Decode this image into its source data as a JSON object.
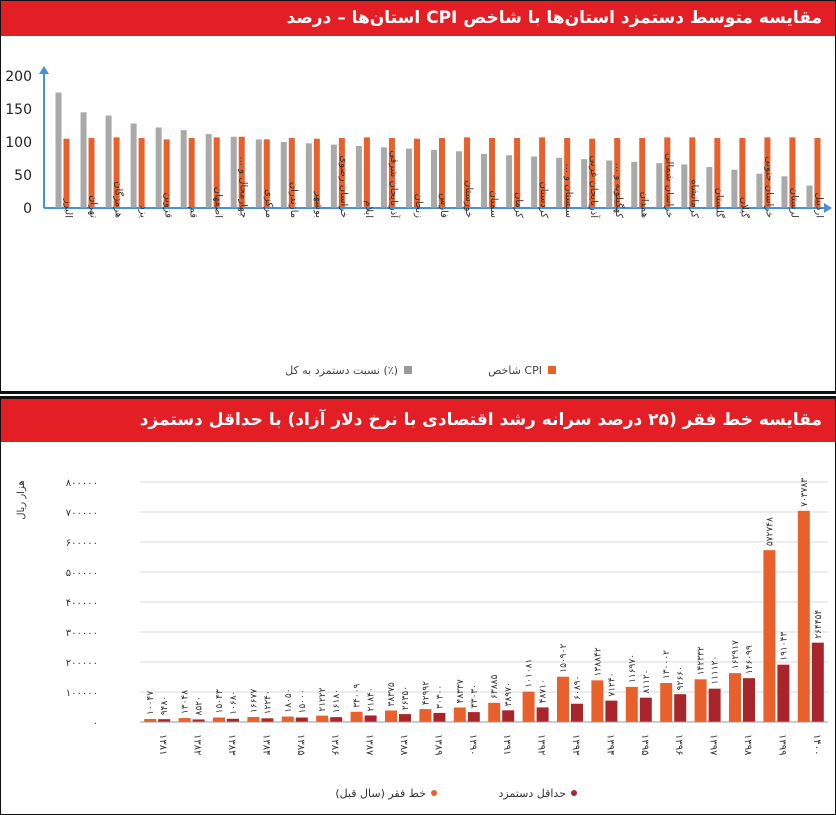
{
  "chart_data": [
    {
      "type": "bar",
      "title": "مقایسه متوسط دستمزد استان‌ها با شاخص CPI استان‌ها – درصد",
      "categories": [
        "البرز",
        "تهران",
        "هرمزگان",
        "یزد",
        "قزوین",
        "قم",
        "اصفهان",
        "چهارمحال و ...",
        "مرکزی",
        "مازندران",
        "بوشهر",
        "خراسان رضوی",
        "ایلام",
        "آذربایجان شرقی",
        "زنجان",
        "فارس",
        "خوزستان",
        "سمنان",
        "کرمان",
        "کردستان",
        "سیستان و ...",
        "آذربایجان غربی",
        "کهگیلویه و ...",
        "همدان",
        "خراسان شمالی",
        "کرمانشاه",
        "گلستان",
        "گیلان",
        "خراسان جنوبی",
        "لرستان",
        "اردبیل"
      ],
      "series": [
        {
          "name": "نسبت دستمزد به کل (٪)",
          "color": "#9a9a9a",
          "values": [
            175,
            145,
            140,
            128,
            122,
            118,
            112,
            108,
            104,
            100,
            98,
            96,
            94,
            92,
            90,
            88,
            86,
            82,
            80,
            78,
            76,
            74,
            72,
            70,
            68,
            66,
            62,
            58,
            52,
            48,
            34
          ]
        },
        {
          "name": "شاخص CPI",
          "color": "#e8602c",
          "values": [
            105,
            106,
            107,
            106,
            104,
            106,
            107,
            108,
            104,
            106,
            105,
            106,
            107,
            106,
            105,
            106,
            107,
            106,
            106,
            107,
            106,
            105,
            106,
            106,
            107,
            107,
            106,
            106,
            107,
            107,
            106
          ]
        }
      ],
      "ylim": [
        0,
        200
      ],
      "yticks": [
        0,
        50,
        100,
        150,
        200
      ],
      "legend_position": "bottom"
    },
    {
      "type": "bar",
      "title": "مقایسه خط فقر (۲۵ درصد سرانه رشد اقتصادی با نرخ دلار آزاد) با حداقل دستمزد",
      "ylabel": "هزار ریال",
      "categories": [
        "۱۳۸۱",
        "۱۳۸۲",
        "۱۳۸۳",
        "۱۳۸۴",
        "۱۳۸۵",
        "۱۳۸۶",
        "۱۳۸۷",
        "۱۳۸۸",
        "۱۳۸۹",
        "۱۳۹۰",
        "۱۳۹۱",
        "۱۳۹۲",
        "۱۳۹۳",
        "۱۳۹۴",
        "۱۳۹۵",
        "۱۳۹۶",
        "۱۳۹۷",
        "۱۳۹۸",
        "۱۳۹۹",
        "۱۴۰۰"
      ],
      "series": [
        {
          "name": "خط فقر (سال قبل)",
          "color": "#e8602c",
          "values": [
            10047,
            13048,
            15043,
            16677,
            18050,
            21222,
            34009,
            38375,
            42992,
            48337,
            63885,
            101081,
            150902,
            138842,
            116970,
            130002,
            142332,
            162917,
            572748,
            703783
          ],
          "labels": [
            "۱۰۰۴۷",
            "۱۳۰۴۸",
            "۱۵۰۴۳",
            "۱۶۶۷۷",
            "۱۸۰۵۰",
            "۲۱۲۲۲",
            "۳۴۰۰۹",
            "۳۸۳۷۵",
            "۴۲۹۹۲",
            "۴۸۳۳۷",
            "۶۳۸۸۵",
            "۱۰۱۰۸۱",
            "۱۵۰۹۰۲",
            "۱۳۸۸۴۲",
            "۱۱۶۹۷۰",
            "۱۳۰۰۰۲",
            "۱۴۲۳۳۲",
            "۱۶۲۹۱۷",
            "۵۷۲۷۴۸",
            "۷۰۳۷۸۳"
          ]
        },
        {
          "name": "حداقل دستمزد",
          "color": "#a8262b",
          "values": [
            9480,
            8520,
            10680,
            12240,
            15000,
            16180,
            21840,
            26350,
            30300,
            33030,
            38970,
            48710,
            60890,
            71240,
            81120,
            92660,
            111120,
            146099,
            191043,
            264454
          ],
          "labels": [
            "۹۴۸۰",
            "۸۵۲۰",
            "۱۰۶۸۰",
            "۱۲۲۴۰",
            "۱۵۰۰۰",
            "۱۶۱۸۰",
            "۲۱۸۴۰",
            "۲۶۳۵۰",
            "۳۰۳۰۰",
            "۳۳۰۳۰",
            "۳۸۹۷۰",
            "۴۸۷۱۰",
            "۶۰۸۹۰",
            "۷۱۲۴۰",
            "۸۱۱۲۰",
            "۹۲۶۶۰",
            "۱۱۱۱۲۰",
            "۱۴۶۰۹۹",
            "۱۹۱۰۴۳",
            "۲۶۴۴۵۴"
          ]
        }
      ],
      "ylim": [
        0,
        800000
      ],
      "yticks": [
        0,
        100000,
        200000,
        300000,
        400000,
        500000,
        600000,
        700000,
        800000
      ],
      "ytick_labels": [
        "۰",
        "۱۰۰۰۰۰",
        "۲۰۰۰۰۰",
        "۳۰۰۰۰۰",
        "۴۰۰۰۰۰",
        "۵۰۰۰۰۰",
        "۶۰۰۰۰۰",
        "۷۰۰۰۰۰",
        "۸۰۰۰۰۰"
      ],
      "grid": true,
      "legend_position": "bottom"
    }
  ]
}
